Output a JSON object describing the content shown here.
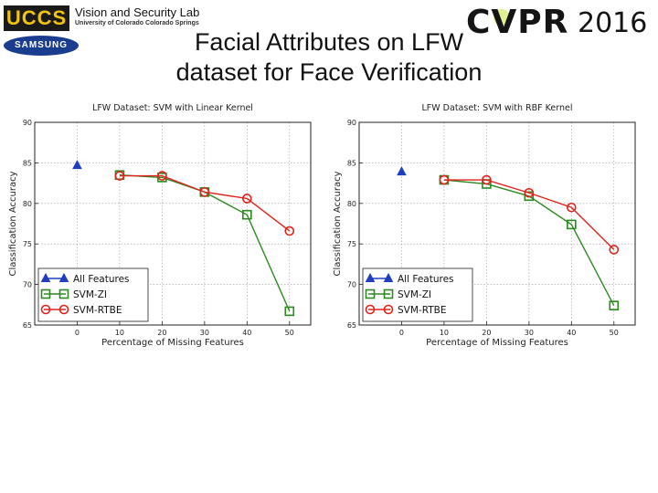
{
  "header": {
    "lab_logo_text": "UCCS",
    "lab_name": "Vision and Security Lab",
    "lab_affiliation": "University of Colorado Colorado Springs",
    "sponsor_logo_text": "SAMSUNG",
    "conference_name": "CVPR",
    "conference_year": "2016"
  },
  "slide": {
    "title_line1": "Facial Attributes on LFW",
    "title_line2": "dataset for Face Verification"
  },
  "colors": {
    "all_features": "#1f3fbf",
    "svm_zi": "#2a8a1e",
    "svm_rtbe": "#e0231c"
  },
  "chart_data": [
    {
      "type": "line",
      "title": "LFW Dataset: SVM with Linear Kernel",
      "xlabel": "Percentage of Missing Features",
      "ylabel": "Classification Accuracy",
      "xlim": [
        -10,
        55
      ],
      "ylim": [
        65,
        90
      ],
      "xticks": [
        0,
        10,
        20,
        30,
        40,
        50
      ],
      "yticks": [
        65,
        70,
        75,
        80,
        85,
        90
      ],
      "grid": true,
      "legend_position": "bottom-left",
      "series": [
        {
          "name": "All Features",
          "marker": "triangle",
          "x": [
            0
          ],
          "y": [
            84.7
          ]
        },
        {
          "name": "SVM-ZI",
          "marker": "square",
          "x": [
            10,
            20,
            30,
            40,
            50
          ],
          "y": [
            83.5,
            83.2,
            81.4,
            78.6,
            66.7
          ]
        },
        {
          "name": "SVM-RTBE",
          "marker": "circle",
          "x": [
            10,
            20,
            30,
            40,
            50
          ],
          "y": [
            83.4,
            83.4,
            81.4,
            80.6,
            76.6
          ]
        }
      ]
    },
    {
      "type": "line",
      "title": "LFW Dataset: SVM with RBF Kernel",
      "xlabel": "Percentage of Missing Features",
      "ylabel": "Classification Accuracy",
      "xlim": [
        -10,
        55
      ],
      "ylim": [
        65,
        90
      ],
      "xticks": [
        0,
        10,
        20,
        30,
        40,
        50
      ],
      "yticks": [
        65,
        70,
        75,
        80,
        85,
        90
      ],
      "grid": true,
      "legend_position": "bottom-left",
      "series": [
        {
          "name": "All Features",
          "marker": "triangle",
          "x": [
            0
          ],
          "y": [
            83.9
          ]
        },
        {
          "name": "SVM-ZI",
          "marker": "square",
          "x": [
            10,
            20,
            30,
            40,
            50
          ],
          "y": [
            82.9,
            82.4,
            80.9,
            77.4,
            67.4
          ]
        },
        {
          "name": "SVM-RTBE",
          "marker": "circle",
          "x": [
            10,
            20,
            30,
            40,
            50
          ],
          "y": [
            82.9,
            82.9,
            81.3,
            79.5,
            74.3
          ]
        }
      ]
    }
  ]
}
